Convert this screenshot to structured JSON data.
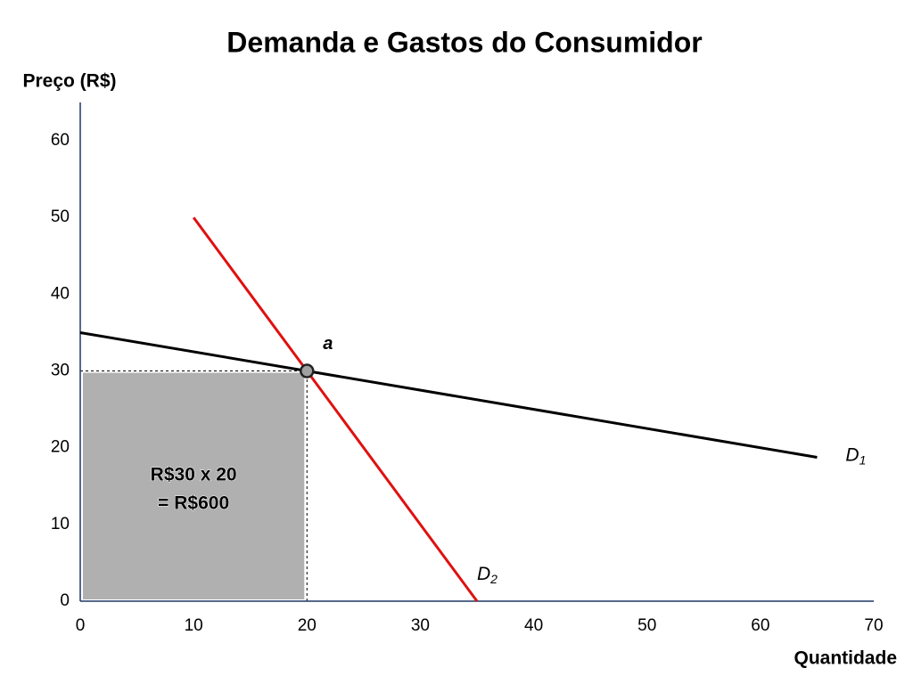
{
  "chart_data": {
    "type": "line",
    "title": "Demanda e Gastos do Consumidor",
    "ylabel": "Preço (R$)",
    "xlabel": "Quantidade",
    "xlim": [
      0,
      70
    ],
    "ylim": [
      0,
      65
    ],
    "xticks": [
      0,
      10,
      20,
      30,
      40,
      50,
      60,
      70
    ],
    "yticks": [
      0,
      10,
      20,
      30,
      40,
      50,
      60
    ],
    "grid": false,
    "series": [
      {
        "name": "D",
        "subscript": "1",
        "color": "#000000",
        "x": [
          0,
          65
        ],
        "values": [
          35,
          18.75
        ]
      },
      {
        "name": "D",
        "subscript": "2",
        "color": "#e01010",
        "x": [
          10,
          35
        ],
        "values": [
          50,
          0
        ]
      }
    ],
    "point": {
      "label": "a",
      "x": 20,
      "y": 30
    },
    "area": {
      "x": [
        0,
        20
      ],
      "y": [
        0,
        30
      ],
      "color": "#b0b0b0",
      "lines": [
        "R$30 x 20",
        "= R$600"
      ]
    }
  }
}
